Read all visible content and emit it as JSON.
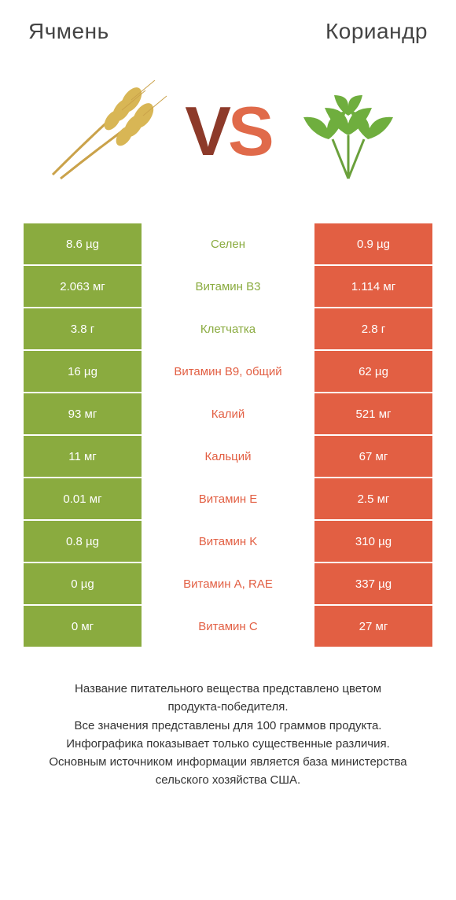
{
  "colors": {
    "left": "#8aab3f",
    "right": "#e25f43",
    "mid_bg": "#ffffff",
    "title_text": "#444444",
    "vs_dark": "#8d3a2a",
    "vs_light": "#e06a4a"
  },
  "titles": {
    "left": "Ячмень",
    "right": "Кориандр"
  },
  "vs": {
    "v": "V",
    "s": "S"
  },
  "rows": [
    {
      "left": "8.6 µg",
      "label": "Селен",
      "right": "0.9 µg",
      "winner": "left"
    },
    {
      "left": "2.063 мг",
      "label": "Витамин B3",
      "right": "1.114 мг",
      "winner": "left"
    },
    {
      "left": "3.8 г",
      "label": "Клетчатка",
      "right": "2.8 г",
      "winner": "left"
    },
    {
      "left": "16 µg",
      "label": "Витамин B9, общий",
      "right": "62 µg",
      "winner": "right"
    },
    {
      "left": "93 мг",
      "label": "Калий",
      "right": "521 мг",
      "winner": "right"
    },
    {
      "left": "11 мг",
      "label": "Кальций",
      "right": "67 мг",
      "winner": "right"
    },
    {
      "left": "0.01 мг",
      "label": "Витамин E",
      "right": "2.5 мг",
      "winner": "right"
    },
    {
      "left": "0.8 µg",
      "label": "Витамин K",
      "right": "310 µg",
      "winner": "right"
    },
    {
      "left": "0 µg",
      "label": "Витамин A, RAE",
      "right": "337 µg",
      "winner": "right"
    },
    {
      "left": "0 мг",
      "label": "Витамин C",
      "right": "27 мг",
      "winner": "right"
    }
  ],
  "footer": {
    "l1": "Название питательного вещества представлено цветом",
    "l2": "продукта-победителя.",
    "l3": "Все значения представлены для 100 граммов продукта.",
    "l4": "Инфографика показывает только существенные различия.",
    "l5": "Основным источником информации является база министерства",
    "l6": "сельского хозяйства США."
  }
}
